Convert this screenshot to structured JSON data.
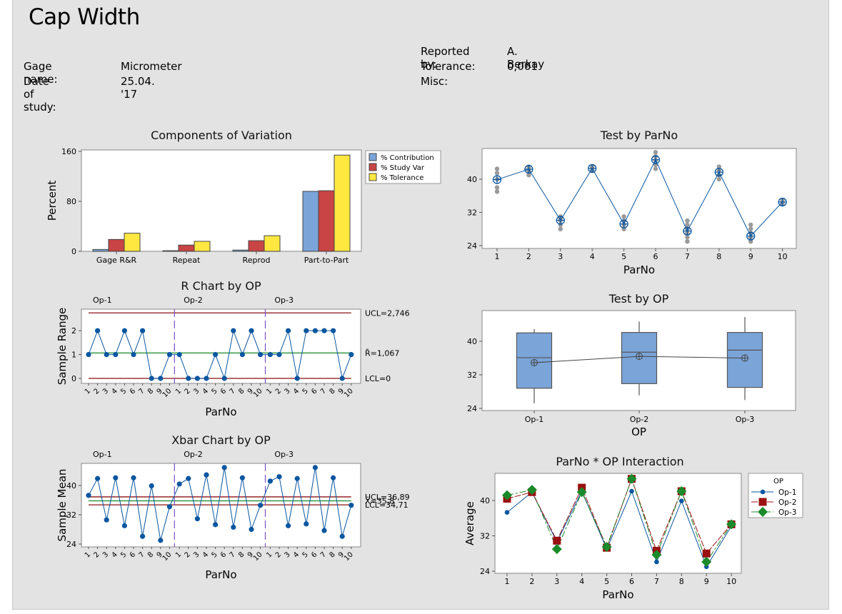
{
  "report": {
    "title": "Cap Width",
    "header_left": [
      {
        "label": "Gage name:",
        "value": "Micrometer"
      },
      {
        "label": "Date of study:",
        "value": "25.04. '17"
      }
    ],
    "header_right": [
      {
        "label": "Reported by:",
        "value": "A. Berkay"
      },
      {
        "label": "Tolerance:",
        "value": "0,001"
      },
      {
        "label": "Misc:",
        "value": ""
      }
    ]
  },
  "colors": {
    "contribution": "#7ba4d8",
    "study_var": "#c94444",
    "tolerance": "#ffe840",
    "series_blue": "#0a56a0",
    "limit_red": "#8b1010",
    "center_green": "#1a8a2a",
    "divider_purple": "#7b4fc0",
    "op2_marker": "#9b1010",
    "op3_marker": "#1a8a2a",
    "raw_gray": "#9a9a9a",
    "box_fill": "#7ba4d8"
  },
  "chart_data": [
    {
      "id": "components",
      "type": "bar",
      "title": "Components of Variation",
      "xlabel": "",
      "ylabel": "Percent",
      "ylim": [
        0,
        160
      ],
      "yticks": [
        0,
        80,
        160
      ],
      "categories": [
        "Gage R&R",
        "Repeat",
        "Reprod",
        "Part-to-Part"
      ],
      "series": [
        {
          "name": "% Contribution",
          "values": [
            3,
            1,
            2,
            96
          ]
        },
        {
          "name": "% Study Var",
          "values": [
            19,
            10,
            17,
            97
          ]
        },
        {
          "name": "% Tolerance",
          "values": [
            29,
            16,
            25,
            154
          ]
        }
      ],
      "legend": "right"
    },
    {
      "id": "test_by_parno",
      "type": "scatter",
      "title": "Test by ParNo",
      "xlabel": "ParNo",
      "ylabel": "",
      "ylim": [
        24,
        47
      ],
      "yticks": [
        24,
        32,
        40
      ],
      "x": [
        1,
        2,
        3,
        4,
        5,
        6,
        7,
        8,
        9,
        10
      ],
      "means": [
        39.9,
        42.4,
        30.1,
        42.6,
        29.2,
        44.7,
        27.5,
        41.7,
        26.3,
        34.5
      ],
      "observations": [
        [
          42.5,
          41.5,
          40,
          38,
          37
        ],
        [
          43,
          42.5,
          42,
          41
        ],
        [
          31,
          30.5,
          30,
          29,
          28
        ],
        [
          43,
          42.5,
          42
        ],
        [
          31,
          30,
          29,
          28
        ],
        [
          46.5,
          45.5,
          44.5,
          43.5,
          42.5
        ],
        [
          30,
          29,
          28,
          27,
          26,
          25
        ],
        [
          43,
          42,
          41,
          40
        ],
        [
          29,
          28,
          27,
          26,
          25
        ],
        [
          35,
          34.5,
          34
        ]
      ]
    },
    {
      "id": "r_chart",
      "type": "line",
      "title": "R Chart by OP",
      "xlabel": "ParNo",
      "ylabel": "Sample Range",
      "ylim": [
        -0.15,
        2.9
      ],
      "yticks": [
        0,
        1,
        2
      ],
      "groups": [
        "Op-1",
        "Op-2",
        "Op-3"
      ],
      "x_tick_labels": [
        "1",
        "2",
        "3",
        "4",
        "5",
        "6",
        "7",
        "8",
        "9",
        "10"
      ],
      "values": [
        [
          1,
          2,
          1,
          1,
          2,
          1,
          2,
          0,
          0,
          1
        ],
        [
          1,
          0,
          0,
          0,
          1,
          0,
          2,
          1,
          2,
          1
        ],
        [
          1,
          1,
          2,
          0,
          2,
          2,
          2,
          2,
          0,
          1
        ]
      ],
      "limits": {
        "ucl": 2.746,
        "center": 1.067,
        "lcl": 0
      },
      "limit_labels": {
        "ucl": "UCL=2,746",
        "center": "R̄=1,067",
        "lcl": "LCL=0"
      }
    },
    {
      "id": "xbar_chart",
      "type": "line",
      "title": "Xbar Chart by OP",
      "xlabel": "ParNo",
      "ylabel": "Sample Mean",
      "ylim": [
        23.5,
        47
      ],
      "yticks": [
        24,
        32,
        40
      ],
      "groups": [
        "Op-1",
        "Op-2",
        "Op-3"
      ],
      "x_tick_labels": [
        "1",
        "2",
        "3",
        "4",
        "5",
        "6",
        "7",
        "8",
        "9",
        "10"
      ],
      "values": [
        [
          37.3,
          41.9,
          30.6,
          42.1,
          29.0,
          42.1,
          26.1,
          39.9,
          25.0,
          34.2
        ],
        [
          40.4,
          41.9,
          30.9,
          42.9,
          29.3,
          44.9,
          28.6,
          42.1,
          28.0,
          34.6
        ],
        [
          41.2,
          42.4,
          29.0,
          41.9,
          29.5,
          44.9,
          27.7,
          42.1,
          26.1,
          34.6
        ]
      ],
      "limits": {
        "ucl": 36.89,
        "center": 35.8,
        "lcl": 34.71
      },
      "limit_labels": {
        "ucl": "UCL=36,89",
        "center": "X̄=35,8",
        "lcl": "LCL=34,71"
      }
    },
    {
      "id": "test_by_op",
      "type": "boxplot",
      "title": "Test by OP",
      "xlabel": "OP",
      "ylabel": "",
      "ylim": [
        24,
        47
      ],
      "yticks": [
        24,
        32,
        40
      ],
      "categories": [
        "Op-1",
        "Op-2",
        "Op-3"
      ],
      "boxes": [
        {
          "min": 25.2,
          "q1": 28.8,
          "median": 36.1,
          "q3": 42.0,
          "max": 42.9,
          "mean": 34.9
        },
        {
          "min": 27.1,
          "q1": 29.9,
          "median": 37.4,
          "q3": 42.1,
          "max": 44.7,
          "mean": 36.4
        },
        {
          "min": 26.0,
          "q1": 29.0,
          "median": 37.9,
          "q3": 42.1,
          "max": 45.8,
          "mean": 36.0
        }
      ]
    },
    {
      "id": "interaction",
      "type": "line",
      "title": "ParNo * OP Interaction",
      "xlabel": "ParNo",
      "ylabel": "Average",
      "ylim": [
        24,
        46
      ],
      "yticks": [
        24,
        32,
        40
      ],
      "x": [
        1,
        2,
        3,
        4,
        5,
        6,
        7,
        8,
        9,
        10
      ],
      "legend_title": "OP",
      "series": [
        {
          "name": "Op-1",
          "values": [
            37.3,
            41.9,
            30.6,
            42.1,
            29.0,
            42.1,
            26.1,
            39.9,
            25.0,
            34.2
          ]
        },
        {
          "name": "Op-2",
          "values": [
            40.4,
            41.9,
            30.9,
            42.9,
            29.3,
            44.9,
            28.6,
            42.1,
            28.0,
            34.6
          ]
        },
        {
          "name": "Op-3",
          "values": [
            41.2,
            42.4,
            29.0,
            41.9,
            29.5,
            44.9,
            27.7,
            42.1,
            26.1,
            34.6
          ]
        }
      ],
      "legend": "right"
    }
  ]
}
